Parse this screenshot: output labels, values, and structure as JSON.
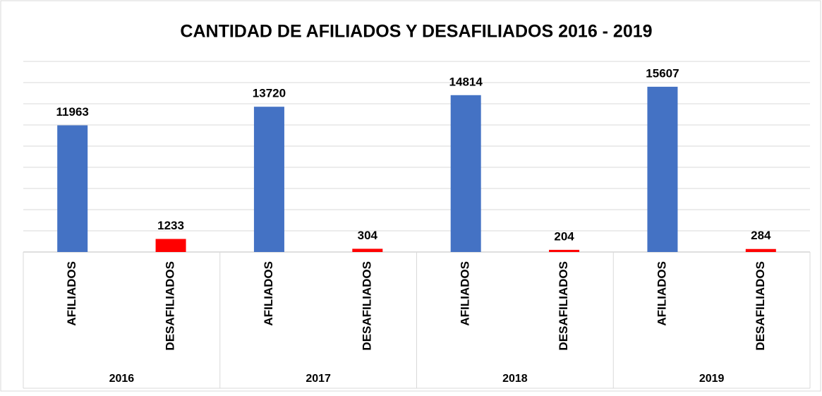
{
  "chart_data": {
    "type": "bar",
    "title": "CANTIDAD DE AFILIADOS  Y DESAFILIADOS  2016 - 2019",
    "categories": [
      "2016",
      "2017",
      "2018",
      "2019"
    ],
    "series": [
      {
        "name": "AFILIADOS",
        "color": "#4472c4",
        "values": [
          11963,
          13720,
          14814,
          15607
        ]
      },
      {
        "name": "DESAFILIADOS",
        "color": "#ff0000",
        "values": [
          1233,
          304,
          204,
          284
        ]
      }
    ],
    "ylim": [
      0,
      18000
    ],
    "yticks": [
      0,
      2000,
      4000,
      6000,
      8000,
      10000,
      12000,
      14000,
      16000,
      18000
    ],
    "grid": true
  }
}
